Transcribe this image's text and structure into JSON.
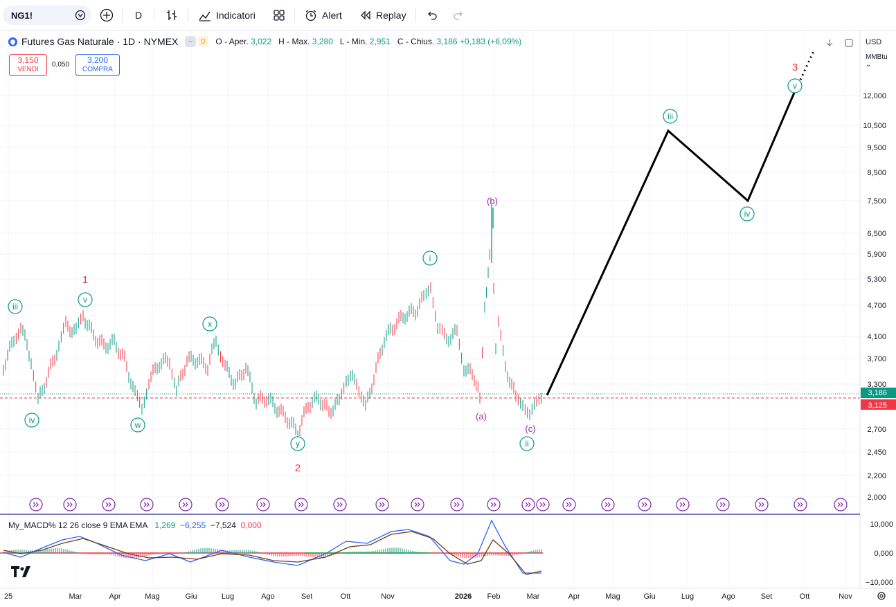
{
  "toolbar": {
    "symbol": "NG1!",
    "interval": "D",
    "indicators_label": "Indicatori",
    "alert_label": "Alert",
    "replay_label": "Replay"
  },
  "legend": {
    "title": "Futures Gas Naturale · 1D · NYMEX",
    "pill_dash": "–",
    "pill_d": "D",
    "open_label": "O - Aper.",
    "open": "3,022",
    "high_label": "H - Max.",
    "high": "3,280",
    "low_label": "L - Min.",
    "low": "2,951",
    "close_label": "C - Chius.",
    "close": "3,186",
    "change": "+0,183 (+6,09%)"
  },
  "trade": {
    "sell_price": "3,150",
    "sell_label": "VENDI",
    "spread": "0,050",
    "buy_price": "3,200",
    "buy_label": "COMPRA"
  },
  "price_axis": {
    "currency": "USD",
    "unit": "MMBtu",
    "ticks": [
      "12,000",
      "10,500",
      "9,500",
      "8,500",
      "7,500",
      "6,500",
      "5,900",
      "5,300",
      "4,700",
      "4,100",
      "3,700",
      "3,300",
      "2,700",
      "2,450",
      "2,200",
      "2,000"
    ],
    "last_price": "3,186",
    "last_price_color": "#089981",
    "line_price": "3,125",
    "line_color": "#f23645"
  },
  "time_axis": {
    "labels": [
      "25",
      "Mar",
      "Apr",
      "Mag",
      "Giu",
      "Lug",
      "Ago",
      "Set",
      "Ott",
      "Nov",
      "2026",
      "Feb",
      "Mar",
      "Apr",
      "Mag",
      "Giu",
      "Lug",
      "Ago",
      "Set",
      "Ott",
      "Nov"
    ]
  },
  "elliott": {
    "main_labels": [
      "1",
      "2",
      "3"
    ],
    "minor_labels": [
      "iii",
      "iv",
      "v",
      "w",
      "x",
      "y",
      "i",
      "ii",
      "iii",
      "iv",
      "v"
    ],
    "corrective_labels": [
      "(a)",
      "(b)",
      "(c)"
    ]
  },
  "macd": {
    "title": "My_MACD% 12 26 close 9 EMA EMA",
    "v1": "1,269",
    "v2": "−6,255",
    "v3": "−7,524",
    "v4": "0,000",
    "ticks": [
      "10,000",
      "0,000",
      "−10,000"
    ]
  },
  "colors": {
    "wave_green": "#089981",
    "wave_red": "#f23645",
    "wave_purple": "#9c27b0",
    "accent": "#2962ff"
  }
}
